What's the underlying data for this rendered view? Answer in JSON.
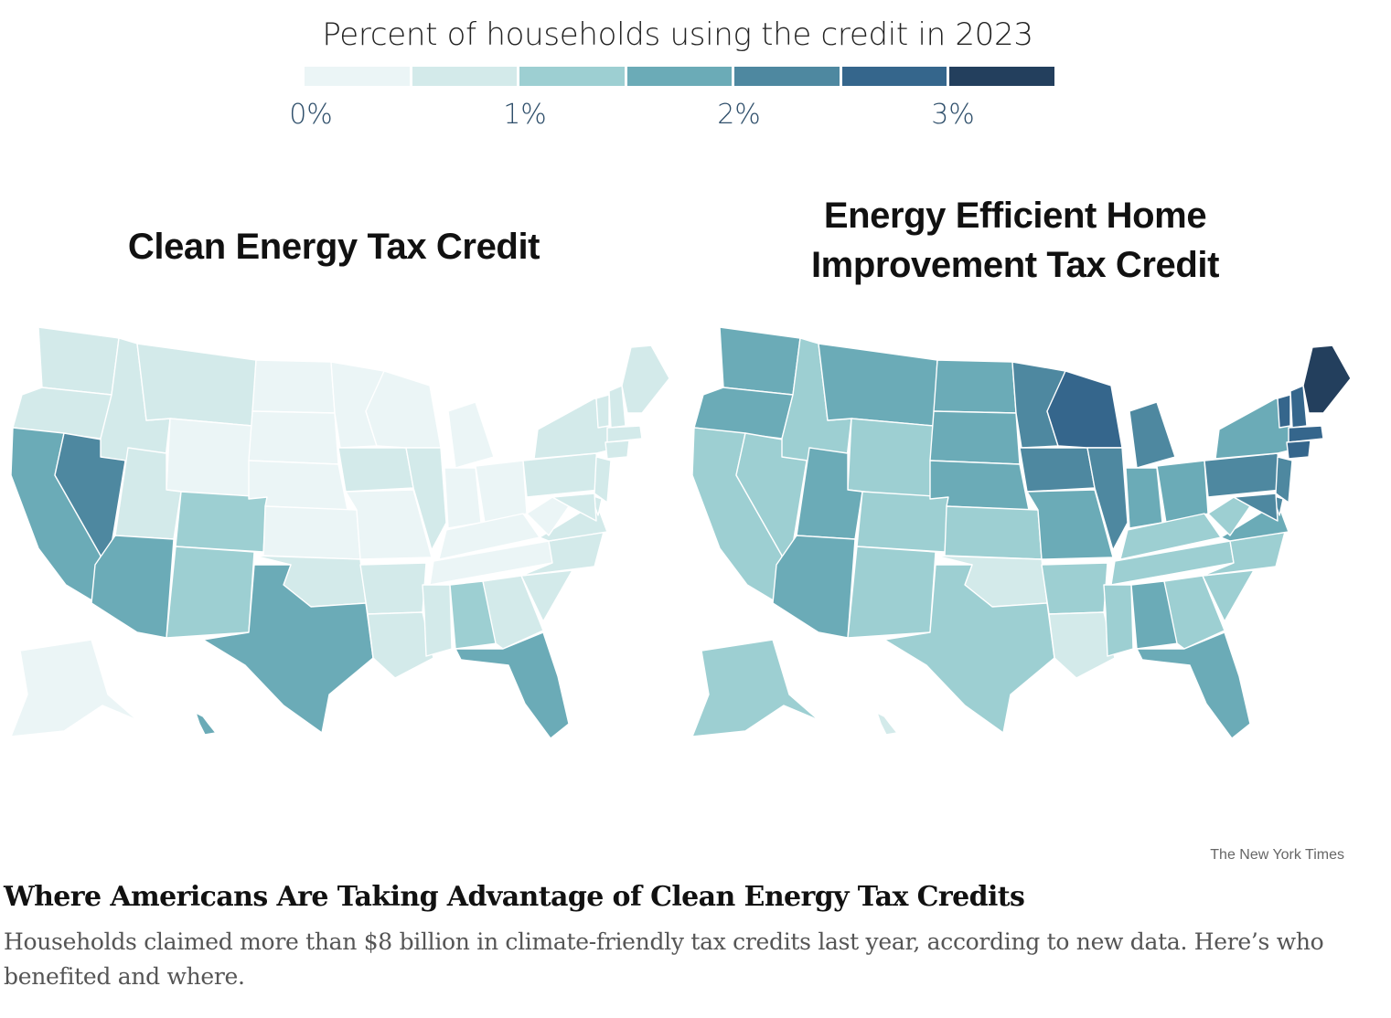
{
  "legend": {
    "title": "Percent of households using the credit in 2023",
    "colors": [
      "#ebf5f6",
      "#d3eaea",
      "#9dcfd2",
      "#6babb7",
      "#4e88a0",
      "#35668c",
      "#233f5d"
    ],
    "ticks": [
      {
        "label": "0%",
        "value": 0
      },
      {
        "label": "1%",
        "value": 1
      },
      {
        "label": "2%",
        "value": 2
      },
      {
        "label": "3%",
        "value": 3
      }
    ],
    "bins": [
      [
        0,
        0.5
      ],
      [
        0.5,
        1
      ],
      [
        1,
        1.5
      ],
      [
        1.5,
        2
      ],
      [
        2,
        2.5
      ],
      [
        2.5,
        3
      ],
      [
        3,
        3.5
      ]
    ]
  },
  "maps": [
    {
      "title": "Clean Energy Tax Credit",
      "state_bins": {
        "WA": 1,
        "OR": 1,
        "CA": 3,
        "NV": 4,
        "ID": 1,
        "MT": 1,
        "WY": 0,
        "UT": 1,
        "AZ": 3,
        "CO": 2,
        "NM": 2,
        "ND": 0,
        "SD": 0,
        "NE": 0,
        "KS": 0,
        "OK": 1,
        "TX": 3,
        "MN": 0,
        "IA": 1,
        "MO": 0,
        "AR": 1,
        "LA": 1,
        "WI": 0,
        "IL": 1,
        "MI": 0,
        "IN": 0,
        "OH": 0,
        "KY": 0,
        "TN": 0,
        "MS": 1,
        "AL": 2,
        "GA": 1,
        "FL": 3,
        "SC": 1,
        "NC": 1,
        "VA": 1,
        "WV": 0,
        "PA": 1,
        "NY": 1,
        "VT": 1,
        "NH": 1,
        "ME": 1,
        "MA": 1,
        "CT": 1,
        "NJ": 1,
        "DE": 1,
        "MD": 1,
        "AK": 0,
        "HI": 3
      }
    },
    {
      "title": "Energy Efficient Home Improvement Tax Credit",
      "state_bins": {
        "WA": 3,
        "OR": 3,
        "CA": 2,
        "NV": 2,
        "ID": 2,
        "MT": 3,
        "WY": 2,
        "UT": 3,
        "AZ": 3,
        "CO": 2,
        "NM": 2,
        "ND": 3,
        "SD": 3,
        "NE": 3,
        "KS": 2,
        "OK": 1,
        "TX": 2,
        "MN": 4,
        "IA": 4,
        "MO": 3,
        "AR": 2,
        "LA": 1,
        "WI": 5,
        "IL": 4,
        "MI": 4,
        "IN": 3,
        "OH": 3,
        "KY": 2,
        "TN": 2,
        "MS": 2,
        "AL": 3,
        "GA": 2,
        "FL": 3,
        "SC": 2,
        "NC": 2,
        "VA": 3,
        "WV": 2,
        "PA": 4,
        "NY": 3,
        "VT": 5,
        "NH": 5,
        "ME": 6,
        "MA": 5,
        "CT": 5,
        "NJ": 4,
        "DE": 4,
        "MD": 4,
        "AK": 2,
        "HI": 1
      }
    }
  ],
  "credit": "The New York Times",
  "headline": "Where Americans Are Taking Advantage of Clean Energy Tax Credits",
  "summary": "Households claimed more than $8 billion in climate-friendly tax credits last year, according to new data. Here’s who benefited and where."
}
